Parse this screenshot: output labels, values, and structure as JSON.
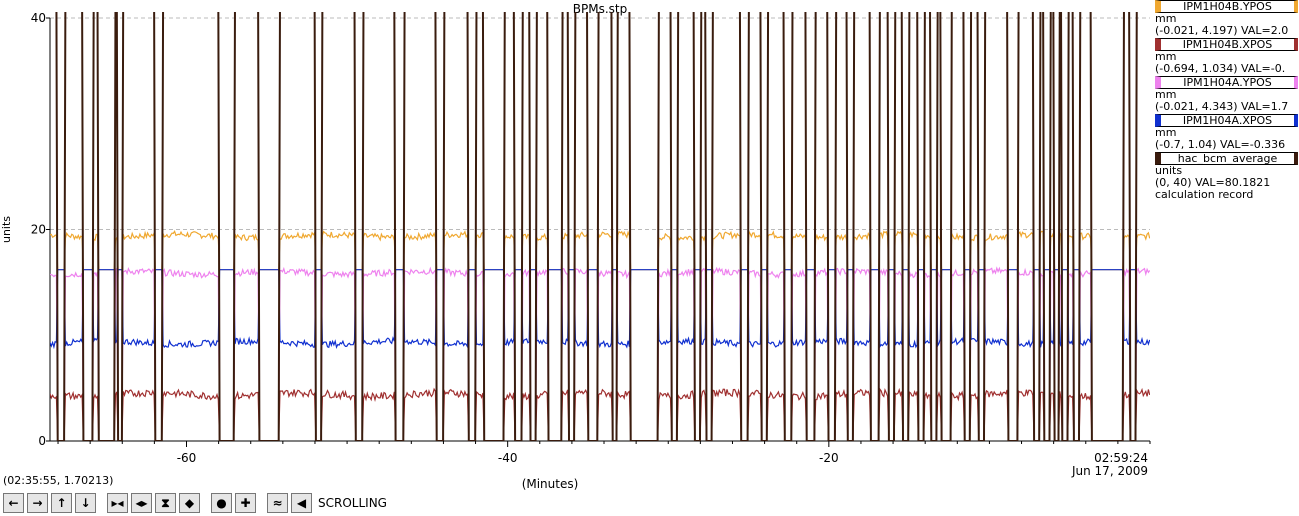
{
  "chart_data": {
    "type": "line",
    "title": "BPMs.stp",
    "xlabel": "(Minutes)",
    "ylabel": "units",
    "xlim": [
      -68.5,
      0
    ],
    "ylim": [
      0,
      40
    ],
    "x_ticks": [
      -60,
      -40,
      -20
    ],
    "y_ticks": [
      0,
      20,
      40
    ],
    "grid": true,
    "end_time": "02:59:24",
    "end_date": "Jun 17, 2009",
    "gaps": [
      [
        -68.1,
        -67.6
      ],
      [
        -66.5,
        -65.8
      ],
      [
        -65.5,
        -64.5
      ],
      [
        -64.3,
        -64.0
      ],
      [
        -62.0,
        -61.5
      ],
      [
        -58.0,
        -57.0
      ],
      [
        -55.5,
        -54.2
      ],
      [
        -52.0,
        -51.6
      ],
      [
        -49.5,
        -49.0
      ],
      [
        -47.0,
        -46.5
      ],
      [
        -44.5,
        -44.0
      ],
      [
        -42.5,
        -42.0
      ],
      [
        -41.5,
        -40.2
      ],
      [
        -39.6,
        -39.1
      ],
      [
        -38.6,
        -38.2
      ],
      [
        -37.5,
        -36.6
      ],
      [
        -36.2,
        -35.8
      ],
      [
        -35.0,
        -34.4
      ],
      [
        -33.5,
        -33.2
      ],
      [
        -32.4,
        -30.6
      ],
      [
        -29.8,
        -29.4
      ],
      [
        -28.4,
        -28.0
      ],
      [
        -27.7,
        -27.3
      ],
      [
        -25.5,
        -25.0
      ],
      [
        -24.2,
        -23.8
      ],
      [
        -22.8,
        -22.3
      ],
      [
        -21.4,
        -20.9
      ],
      [
        -20.1,
        -19.6
      ],
      [
        -18.9,
        -18.5
      ],
      [
        -17.4,
        -16.9
      ],
      [
        -16.3,
        -15.9
      ],
      [
        -15.4,
        -15.0
      ],
      [
        -14.5,
        -14.1
      ],
      [
        -13.7,
        -13.3
      ],
      [
        -13.0,
        -12.4
      ],
      [
        -11.6,
        -11.2
      ],
      [
        -10.7,
        -10.3
      ],
      [
        -8.9,
        -8.2
      ],
      [
        -7.3,
        -6.9
      ],
      [
        -6.6,
        -6.2
      ],
      [
        -6.0,
        -5.7
      ],
      [
        -5.5,
        -5.1
      ],
      [
        -4.8,
        -4.4
      ],
      [
        -3.7,
        -1.7
      ],
      [
        -1.3,
        -0.9
      ]
    ],
    "series": [
      {
        "name": "IPM1H04B.YPOS",
        "color": "#f0a830",
        "unit": "mm",
        "range": "(-0.021, 4.197)",
        "val": "VAL=2.0",
        "base": 19.4,
        "dropped": 16.2
      },
      {
        "name": "IPM1H04B.XPOS",
        "color": "#a03030",
        "unit": "mm",
        "range": "(-0.694, 1.034)",
        "val": "VAL=-0.",
        "base": 4.4,
        "dropped": 0
      },
      {
        "name": "IPM1H04A.YPOS",
        "color": "#ee82ee",
        "unit": "mm",
        "range": "(-0.021, 4.343)",
        "val": "VAL=1.7",
        "base": 15.9,
        "dropped": 0
      },
      {
        "name": "IPM1H04A.XPOS",
        "color": "#1030d0",
        "unit": "mm",
        "range": "(-0.7, 1.04)",
        "val": "VAL=-0.336",
        "base": 9.3,
        "dropped": 16.2
      },
      {
        "name": "hac_bcm_average",
        "color": "#3a1c0e",
        "unit": "units",
        "range": "(0, 40)",
        "val": "VAL=80.1821",
        "extra": "calculation record",
        "base": 42,
        "dropped": 0
      }
    ]
  },
  "cursor_readout": "(02:35:55, 1.70213)",
  "toolbar": {
    "mode_label": "SCROLLING",
    "buttons": [
      {
        "icon": "arrow-left-icon",
        "glyph": "←"
      },
      {
        "icon": "arrow-right-icon",
        "glyph": "→"
      },
      {
        "icon": "arrow-up-icon",
        "glyph": "↑"
      },
      {
        "icon": "arrow-down-icon",
        "glyph": "↓"
      },
      {
        "icon": "zoom-in-horizontal-icon",
        "glyph": "▸◂"
      },
      {
        "icon": "zoom-out-horizontal-icon",
        "glyph": "◂▸"
      },
      {
        "icon": "zoom-in-vertical-icon",
        "glyph": "⧗"
      },
      {
        "icon": "zoom-out-vertical-icon",
        "glyph": "◆"
      },
      {
        "icon": "auto-scale-icon",
        "glyph": "●"
      },
      {
        "icon": "add-icon",
        "glyph": "✚"
      },
      {
        "icon": "waveform-icon",
        "glyph": "≈"
      },
      {
        "icon": "scroll-mode-icon",
        "glyph": "◀"
      }
    ]
  }
}
